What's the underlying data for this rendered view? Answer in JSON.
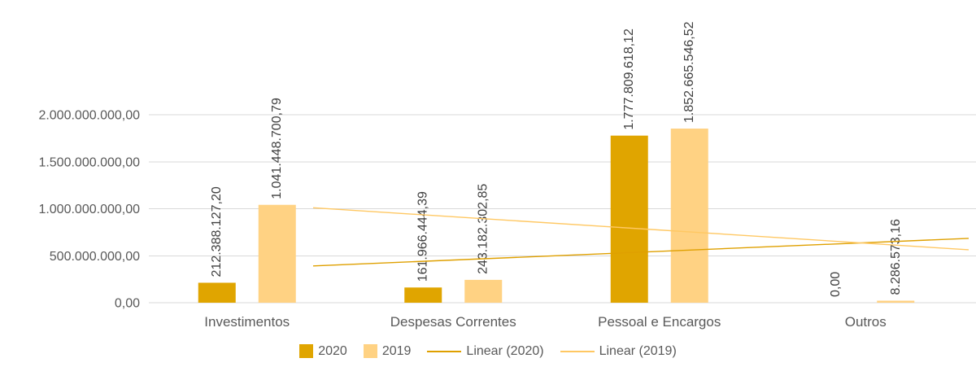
{
  "chart_data": {
    "type": "bar",
    "title": "",
    "categories": [
      "Investimentos",
      "Despesas Correntes",
      "Pessoal e Encargos",
      "Outros"
    ],
    "series": [
      {
        "name": "2020",
        "color": "#E0A500",
        "values": [
          212388127.2,
          161966444.39,
          1777809618.12,
          0.0
        ],
        "labels": [
          "212.388.127,20",
          "161.966.444,39",
          "1.777.809.618,12",
          "0,00"
        ]
      },
      {
        "name": "2019",
        "color": "#FFD283",
        "values": [
          1041448700.79,
          243182302.85,
          1852665546.52,
          8286573.16
        ],
        "labels": [
          "1.041.448.700,79",
          "243.182.302,85",
          "1.852.665.546,52",
          "8.286.573,16"
        ]
      }
    ],
    "trendlines": [
      {
        "name": "Linear (2020)",
        "series": "2020",
        "color": "#DFA000",
        "start_value": 391240000,
        "end_value": 684840000
      },
      {
        "name": "Linear (2019)",
        "series": "2019",
        "color": "#FFC863",
        "start_value": 1009900000,
        "end_value": 562900000
      }
    ],
    "y_axis": {
      "max": 2000000000,
      "ticks": [
        0,
        500000000,
        1000000000,
        1500000000,
        2000000000
      ],
      "tick_labels": [
        "0,00",
        "500.000.000,00",
        "1.000.000.000,00",
        "1.500.000.000,00",
        "2.000.000.000,00"
      ]
    },
    "ylim": [
      0,
      2000000000
    ],
    "grid": true,
    "legend_position": "bottom",
    "legend": [
      "2020",
      "2019",
      "Linear (2020)",
      "Linear (2019)"
    ],
    "data_labels_rotation": -90,
    "style": {
      "background": "#FFFFFF",
      "grid_color": "#D9D9D9",
      "axis_text_color": "#595959",
      "data_label_color": "#404040"
    }
  }
}
